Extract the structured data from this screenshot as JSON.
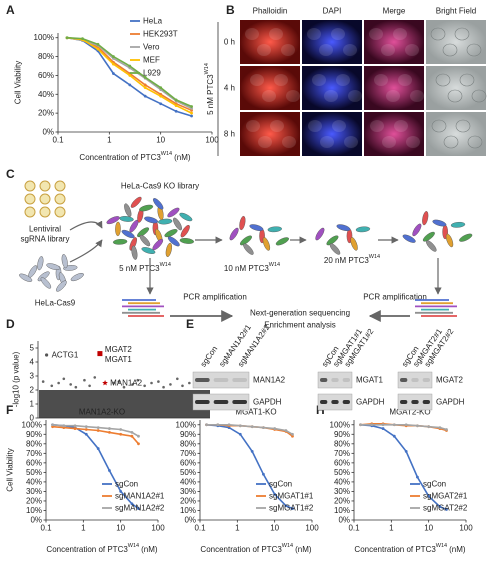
{
  "panel_labels": [
    "A",
    "B",
    "C",
    "D",
    "E",
    "F",
    "G",
    "H"
  ],
  "chart_data": [
    {
      "type": "line",
      "xscale": "log",
      "x": [
        0.15,
        0.3,
        0.6,
        1.2,
        2.5,
        5,
        10,
        20,
        40
      ],
      "xlim": [
        0.1,
        100
      ],
      "xticks": [
        0.1,
        1,
        10,
        100
      ],
      "ylim": [
        0,
        105
      ],
      "yticks": [
        {
          "value": 0,
          "label": "0%"
        },
        {
          "value": 20,
          "label": "20%"
        },
        {
          "value": 40,
          "label": "40%"
        },
        {
          "value": 60,
          "label": "60%"
        },
        {
          "value": 80,
          "label": "80%"
        },
        {
          "value": 100,
          "label": "100%"
        }
      ],
      "ylabel": "Cell Viability",
      "xlabel": "Concentration of PTC3",
      "xlabel_sup": "W14",
      "xlabel_unit": "(nM)",
      "legend": "upper right",
      "series": [
        {
          "name": "HeLa",
          "color": "#4472c4",
          "values": [
            100,
            97,
            86,
            62,
            50,
            38,
            30,
            22,
            17
          ]
        },
        {
          "name": "HEK293T",
          "color": "#ed7d31",
          "values": [
            100,
            98,
            90,
            74,
            62,
            50,
            40,
            30,
            23
          ]
        },
        {
          "name": "Vero",
          "color": "#a5a5a5",
          "values": [
            100,
            97,
            92,
            78,
            68,
            57,
            45,
            33,
            25
          ]
        },
        {
          "name": "MEF",
          "color": "#ffc000",
          "values": [
            100,
            98,
            88,
            72,
            60,
            47,
            38,
            28,
            20
          ]
        },
        {
          "name": "L929",
          "color": "#70ad47",
          "values": [
            100,
            99,
            93,
            80,
            70,
            58,
            47,
            34,
            27
          ]
        }
      ]
    },
    {
      "type": "scatter",
      "ylabel": "-log10 (p value)",
      "ylim": [
        0,
        5.5
      ],
      "yticks": [
        0,
        1,
        2,
        3,
        4,
        5
      ],
      "xlim": [
        0,
        100
      ],
      "background_max": 2,
      "background_color": "#4d4d4d",
      "color": "#666666",
      "x": [
        3,
        8,
        12,
        15,
        19,
        22,
        27,
        30,
        33,
        44,
        47,
        50,
        55,
        58,
        62,
        66,
        70,
        73,
        77,
        81,
        84,
        88,
        91,
        95,
        98
      ],
      "values": [
        2.6,
        2.3,
        2.5,
        2.8,
        2.4,
        2.2,
        2.7,
        2.3,
        2.9,
        2.5,
        2.6,
        2.2,
        2.4,
        2.7,
        2.3,
        2.5,
        2.6,
        2.2,
        2.4,
        2.8,
        2.3,
        2.5,
        2.6,
        2.4,
        2.7
      ],
      "highlights": [
        {
          "labels": [
            "ACTG1"
          ],
          "x": 5,
          "value": 4.5,
          "color": "#555555",
          "marker": "circle"
        },
        {
          "labels": [
            "MGAT2",
            "MGAT1"
          ],
          "x": 36,
          "value": 4.6,
          "color": "#c00000",
          "marker": "square"
        },
        {
          "labels": [
            "MAN1A2"
          ],
          "x": 39,
          "value": 2.5,
          "color": "#c00000",
          "marker": "star"
        }
      ]
    },
    {
      "type": "line",
      "xscale": "log",
      "title": "MAN1A2-KO",
      "x": [
        0.15,
        0.3,
        0.6,
        1.2,
        2.5,
        5,
        10,
        20,
        30
      ],
      "xlim": [
        0.1,
        100
      ],
      "xticks": [
        0.1,
        1,
        10,
        100
      ],
      "ylim": [
        0,
        105
      ],
      "yticks": [
        {
          "value": 0,
          "label": "0%"
        },
        {
          "value": 10,
          "label": "10%"
        },
        {
          "value": 20,
          "label": "20%"
        },
        {
          "value": 30,
          "label": "30%"
        },
        {
          "value": 40,
          "label": "40%"
        },
        {
          "value": 50,
          "label": "50%"
        },
        {
          "value": 60,
          "label": "60%"
        },
        {
          "value": 70,
          "label": "70%"
        },
        {
          "value": 80,
          "label": "80%"
        },
        {
          "value": 90,
          "label": "90%"
        },
        {
          "value": 100,
          "label": "100%"
        }
      ],
      "ylabel": "Cell Viability",
      "xlabel": "Concentration of PTC3",
      "xlabel_sup": "W14",
      "xlabel_unit": "(nM)",
      "legend": "lower right",
      "series": [
        {
          "name": "sgCon",
          "color": "#4472c4",
          "values": [
            100,
            99,
            97,
            90,
            75,
            52,
            30,
            17,
            12
          ]
        },
        {
          "name": "sgMAN1A2#1",
          "color": "#ed7d31",
          "values": [
            98,
            97,
            96,
            95,
            94,
            92,
            90,
            88,
            80
          ]
        },
        {
          "name": "sgMAN1A2#2",
          "color": "#a5a5a5",
          "values": [
            100,
            99,
            99,
            98,
            97,
            96,
            95,
            92,
            88
          ]
        }
      ]
    },
    {
      "type": "line",
      "xscale": "log",
      "title": "MGAT1-KO",
      "x": [
        0.15,
        0.3,
        0.6,
        1.2,
        2.5,
        5,
        10,
        20,
        30
      ],
      "xlim": [
        0.1,
        100
      ],
      "xticks": [
        0.1,
        1,
        10,
        100
      ],
      "ylim": [
        0,
        105
      ],
      "yticks": [
        {
          "value": 0,
          "label": "0%"
        },
        {
          "value": 10,
          "label": "10%"
        },
        {
          "value": 20,
          "label": "20%"
        },
        {
          "value": 30,
          "label": "30%"
        },
        {
          "value": 40,
          "label": "40%"
        },
        {
          "value": 50,
          "label": "50%"
        },
        {
          "value": 60,
          "label": "60%"
        },
        {
          "value": 70,
          "label": "70%"
        },
        {
          "value": 80,
          "label": "80%"
        },
        {
          "value": 90,
          "label": "90%"
        },
        {
          "value": 100,
          "label": "100%"
        }
      ],
      "xlabel": "Concentration of PTC3",
      "xlabel_sup": "W14",
      "xlabel_unit": "(nM)",
      "legend": "lower right",
      "series": [
        {
          "name": "sgCon",
          "color": "#4472c4",
          "values": [
            100,
            99,
            97,
            90,
            72,
            48,
            27,
            15,
            12
          ]
        },
        {
          "name": "sgMGAT1#1",
          "color": "#ed7d31",
          "values": [
            100,
            100,
            99,
            99,
            98,
            97,
            95,
            93,
            88
          ]
        },
        {
          "name": "sgMGAT1#2",
          "color": "#a5a5a5",
          "values": [
            100,
            100,
            100,
            99,
            98,
            97,
            96,
            94,
            90
          ]
        }
      ]
    },
    {
      "type": "line",
      "xscale": "log",
      "title": "MGAT2-KO",
      "x": [
        0.15,
        0.3,
        0.6,
        1.2,
        2.5,
        5,
        10,
        20,
        30
      ],
      "xlim": [
        0.1,
        100
      ],
      "xticks": [
        0.1,
        1,
        10,
        100
      ],
      "ylim": [
        0,
        105
      ],
      "yticks": [
        {
          "value": 0,
          "label": "0%"
        },
        {
          "value": 10,
          "label": "10%"
        },
        {
          "value": 20,
          "label": "20%"
        },
        {
          "value": 30,
          "label": "30%"
        },
        {
          "value": 40,
          "label": "40%"
        },
        {
          "value": 50,
          "label": "50%"
        },
        {
          "value": 60,
          "label": "60%"
        },
        {
          "value": 70,
          "label": "70%"
        },
        {
          "value": 80,
          "label": "80%"
        },
        {
          "value": 90,
          "label": "90%"
        },
        {
          "value": 100,
          "label": "100%"
        }
      ],
      "xlabel": "Concentration of PTC3",
      "xlabel_sup": "W14",
      "xlabel_unit": "(nM)",
      "legend": "lower right",
      "series": [
        {
          "name": "sgCon",
          "color": "#4472c4",
          "values": [
            100,
            99,
            96,
            88,
            72,
            45,
            25,
            14,
            11
          ]
        },
        {
          "name": "sgMGAT2#1",
          "color": "#ed7d31",
          "values": [
            100,
            101,
            101,
            100,
            99,
            99,
            98,
            96,
            94
          ]
        },
        {
          "name": "sgMGAT2#2",
          "color": "#a5a5a5",
          "values": [
            100,
            100,
            100,
            100,
            100,
            99,
            98,
            97,
            95
          ]
        }
      ]
    }
  ],
  "microscopy": {
    "columns": [
      "Phalloidin",
      "DAPI",
      "Merge",
      "Bright Field"
    ],
    "rows": [
      "0 h",
      "4 h",
      "8 h"
    ],
    "treatment": "5 nM PTC3",
    "treatment_sup": "W14"
  },
  "diagram": {
    "library": [
      "Lentiviral",
      "sgRNA library"
    ],
    "ko_library": "HeLa-Cas9 KO library",
    "parent": "HeLa-Cas9",
    "steps": [
      {
        "dose": "5 nM PTC3",
        "sup": "W14"
      },
      {
        "dose": "10 nM PTC3",
        "sup": "W14"
      },
      {
        "dose": "20 nM PTC3",
        "sup": "W14"
      }
    ],
    "pcr": [
      "PCR amplification",
      "PCR amplification"
    ],
    "analysis": [
      "Next-generation sequencing",
      "Enrichment analysis"
    ]
  },
  "blots": [
    {
      "lanes": [
        "sgCon",
        "sgMAN1A2#1",
        "sgMAN1A2#2"
      ],
      "target": "MAN1A2",
      "control": "GAPDH"
    },
    {
      "lanes": [
        "sgCon",
        "sgMGAT1#1",
        "sgMGAT1#2"
      ],
      "target": "MGAT1",
      "control": "GAPDH"
    },
    {
      "lanes": [
        "sgCon",
        "sgMGAT2#1",
        "sgMGAT2#2"
      ],
      "target": "MGAT2",
      "control": "GAPDH"
    }
  ]
}
